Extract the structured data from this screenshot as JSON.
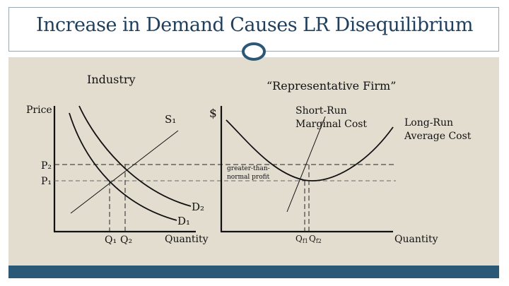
{
  "title": "Increase in Demand Causes LR Disequilibrium",
  "industry": {
    "heading": "Industry",
    "y_axis_label": "Price",
    "x_axis_label": "Quantity",
    "supply_label": "S₁",
    "demand_initial_label": "D₁",
    "demand_new_label": "D₂",
    "price_initial_label": "P₁",
    "price_new_label": "P₂",
    "quantity_initial_label": "Q₁",
    "quantity_new_label": "Q₂"
  },
  "firm": {
    "heading": "“Representative Firm”",
    "y_axis_label": "$",
    "x_axis_label": "Quantity",
    "srmc_label_line1": "Short-Run",
    "srmc_label_line2": "Marginal Cost",
    "lrac_label_line1": "Long-Run",
    "lrac_label_line2": "Average Cost",
    "profit_label_line1": "greater-than-",
    "profit_label_line2": "normal profit",
    "quantity_initial_label": "Q",
    "quantity_initial_sub": "f1",
    "quantity_new_label": "Q",
    "quantity_new_sub": "f2"
  },
  "colors": {
    "title": "#1f3f5c",
    "background": "#e3ddd0",
    "footer": "#2b5877",
    "ornament": "#2b5877"
  }
}
